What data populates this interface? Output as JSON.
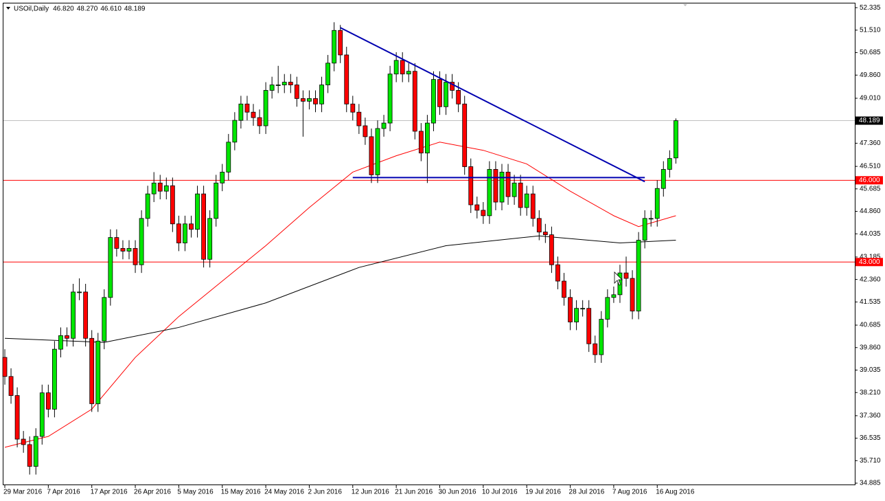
{
  "chart_data": {
    "type": "candlestick",
    "symbol": "USOil,Daily",
    "header_values": [
      "46.820",
      "48.270",
      "46.610",
      "48.189"
    ],
    "categories": [
      "29 Mar 2016",
      null,
      null,
      null,
      null,
      null,
      null,
      "7 Apr 2016",
      null,
      null,
      null,
      null,
      null,
      null,
      "17 Apr 2016",
      null,
      null,
      null,
      null,
      null,
      null,
      "26 Apr 2016",
      null,
      null,
      null,
      null,
      null,
      null,
      "5 May 2016",
      null,
      null,
      null,
      null,
      null,
      null,
      "15 May 2016",
      null,
      null,
      null,
      null,
      null,
      null,
      "24 May 2016",
      null,
      null,
      null,
      null,
      null,
      null,
      "2 Jun 2016",
      null,
      null,
      null,
      null,
      null,
      null,
      "12 Jun 2016",
      null,
      null,
      null,
      null,
      null,
      null,
      "21 Jun 2016",
      null,
      null,
      null,
      null,
      null,
      null,
      "30 Jun 2016",
      null,
      null,
      null,
      null,
      null,
      null,
      "10 Jul 2016",
      null,
      null,
      null,
      null,
      null,
      null,
      "19 Jul 2016",
      null,
      null,
      null,
      null,
      null,
      null,
      "28 Jul 2016",
      null,
      null,
      null,
      null,
      null,
      null,
      "7 Aug 2016",
      null,
      null,
      null,
      null,
      null,
      null,
      "16 Aug 2016",
      null,
      null,
      null
    ],
    "open": [
      39.5,
      38.8,
      38.1,
      36.5,
      36.3,
      35.5,
      36.6,
      38.2,
      37.6,
      39.8,
      40.3,
      40.2,
      41.9,
      41.9,
      40.2,
      37.8,
      40.1,
      41.7,
      43.9,
      43.5,
      43.4,
      43.5,
      42.9,
      44.6,
      45.5,
      45.9,
      45.6,
      45.8,
      44.4,
      43.7,
      44.4,
      44.2,
      45.5,
      43.1,
      44.6,
      45.9,
      46.3,
      47.4,
      48.2,
      48.8,
      48.5,
      48.3,
      48.0,
      49.3,
      49.5,
      49.5,
      49.6,
      49.5,
      49.0,
      48.9,
      49.0,
      48.8,
      49.5,
      50.3,
      51.5,
      50.6,
      48.8,
      48.5,
      48.0,
      47.6,
      46.2,
      47.9,
      48.1,
      49.9,
      50.4,
      49.9,
      50.0,
      47.8,
      47.0,
      48.1,
      49.7,
      48.7,
      49.6,
      49.3,
      48.8,
      46.5,
      45.1,
      44.9,
      44.7,
      46.4,
      45.2,
      46.3,
      45.4,
      45.9,
      45.0,
      45.5,
      44.6,
      44.1,
      44.0,
      42.9,
      42.3,
      41.7,
      40.8,
      41.3,
      41.3,
      40.0,
      39.6,
      40.9,
      41.7,
      41.8,
      42.6,
      42.4,
      41.2,
      43.8,
      44.6,
      44.6,
      45.7,
      46.4,
      46.82
    ],
    "high": [
      39.8,
      39.1,
      38.4,
      36.8,
      36.6,
      36.9,
      38.5,
      38.5,
      40.1,
      40.6,
      40.6,
      42.2,
      42.4,
      42.2,
      40.5,
      40.4,
      42.0,
      44.2,
      44.2,
      43.8,
      43.8,
      43.8,
      44.9,
      45.8,
      46.3,
      46.2,
      46.1,
      46.1,
      44.7,
      44.7,
      44.7,
      45.8,
      45.8,
      44.9,
      46.2,
      46.6,
      47.7,
      48.5,
      49.1,
      49.1,
      48.8,
      48.6,
      49.6,
      49.8,
      50.2,
      49.9,
      49.9,
      49.8,
      49.3,
      49.3,
      49.3,
      49.8,
      50.6,
      51.8,
      51.7,
      50.9,
      49.1,
      48.8,
      48.3,
      47.9,
      48.2,
      48.4,
      50.2,
      50.7,
      50.7,
      50.3,
      50.3,
      48.1,
      48.4,
      50.0,
      50.0,
      49.9,
      49.9,
      49.6,
      49.1,
      46.8,
      45.4,
      45.2,
      46.7,
      46.7,
      46.6,
      46.6,
      46.2,
      46.2,
      45.8,
      45.8,
      44.9,
      44.4,
      44.3,
      43.2,
      42.6,
      42.0,
      41.6,
      41.6,
      41.6,
      40.3,
      41.2,
      42.0,
      42.1,
      42.9,
      43.2,
      42.7,
      44.1,
      44.9,
      44.9,
      46.0,
      46.7,
      47.1,
      48.27
    ],
    "low": [
      38.5,
      37.8,
      36.2,
      36.0,
      35.2,
      35.2,
      36.3,
      37.3,
      37.3,
      39.5,
      39.9,
      39.9,
      41.6,
      39.9,
      37.5,
      37.5,
      39.8,
      41.4,
      43.2,
      43.1,
      43.1,
      42.6,
      42.6,
      44.3,
      45.2,
      45.3,
      45.3,
      44.1,
      43.4,
      43.4,
      43.9,
      43.9,
      42.8,
      42.8,
      44.3,
      45.6,
      46.0,
      47.1,
      47.9,
      48.2,
      48.0,
      47.7,
      47.7,
      49.0,
      49.2,
      49.2,
      49.2,
      48.7,
      47.6,
      48.6,
      48.5,
      48.5,
      49.2,
      50.0,
      50.3,
      48.5,
      48.2,
      47.7,
      47.3,
      45.9,
      45.9,
      47.6,
      47.8,
      49.6,
      49.6,
      49.6,
      47.5,
      46.7,
      45.9,
      47.8,
      48.4,
      48.4,
      49.0,
      48.5,
      46.2,
      44.8,
      44.6,
      44.4,
      44.4,
      44.9,
      44.9,
      45.1,
      45.1,
      44.7,
      44.7,
      44.3,
      43.8,
      43.7,
      42.6,
      42.0,
      41.4,
      40.5,
      40.5,
      41.0,
      39.7,
      39.3,
      39.3,
      40.6,
      41.5,
      41.5,
      42.1,
      40.9,
      40.9,
      43.5,
      44.3,
      44.3,
      45.4,
      46.1,
      46.61
    ],
    "close": [
      38.8,
      38.1,
      36.5,
      36.3,
      35.5,
      36.6,
      38.2,
      37.6,
      39.8,
      40.3,
      40.2,
      41.9,
      41.9,
      40.2,
      37.8,
      40.1,
      41.7,
      43.9,
      43.5,
      43.4,
      43.5,
      42.9,
      44.6,
      45.5,
      45.9,
      45.6,
      45.8,
      44.4,
      43.7,
      44.4,
      44.2,
      45.5,
      43.1,
      44.6,
      45.9,
      46.3,
      47.4,
      48.2,
      48.8,
      48.5,
      48.3,
      48.0,
      49.3,
      49.5,
      49.5,
      49.6,
      49.5,
      49.0,
      48.9,
      49.0,
      48.8,
      49.5,
      50.3,
      51.5,
      50.6,
      48.8,
      48.5,
      48.0,
      47.6,
      46.2,
      47.9,
      48.1,
      49.9,
      50.4,
      49.9,
      50.0,
      47.8,
      47.0,
      48.1,
      49.7,
      48.7,
      49.6,
      49.3,
      48.8,
      46.5,
      45.1,
      44.9,
      44.7,
      46.4,
      45.2,
      46.3,
      45.4,
      45.9,
      45.0,
      45.5,
      44.6,
      44.1,
      44.0,
      42.9,
      42.3,
      41.7,
      40.8,
      41.3,
      41.3,
      40.0,
      39.6,
      40.9,
      41.7,
      41.8,
      42.6,
      42.4,
      41.2,
      43.8,
      44.6,
      44.6,
      45.7,
      46.4,
      46.8,
      48.189
    ],
    "up_color": "#00e600",
    "down_color": "#ff0000",
    "lines": [
      {
        "color": "#ff0000",
        "x": [
          0,
          7,
          14,
          21,
          28,
          35,
          42,
          49,
          56,
          63,
          70,
          77,
          84,
          91,
          98,
          102,
          108
        ],
        "values": [
          36.2,
          36.6,
          37.6,
          39.5,
          41.0,
          42.3,
          43.6,
          45.0,
          46.3,
          46.9,
          47.4,
          47.1,
          46.6,
          45.6,
          44.7,
          44.3,
          44.7
        ]
      },
      {
        "color": "#000000",
        "x": [
          0,
          16,
          28,
          42,
          57,
          71,
          86,
          99,
          108
        ],
        "values": [
          40.2,
          40.05,
          40.6,
          41.5,
          42.8,
          43.6,
          43.96,
          43.7,
          43.8
        ]
      }
    ],
    "trendlines": [
      {
        "color": "#0000b0",
        "x": [
          54,
          103
        ],
        "values": [
          51.6,
          45.95
        ]
      },
      {
        "color": "#0000b0",
        "x": [
          56,
          103
        ],
        "values": [
          46.1,
          46.1
        ]
      }
    ],
    "levels": [
      {
        "value": 46,
        "label": "46.000",
        "color": "#ff0000"
      },
      {
        "value": 43,
        "label": "43.000",
        "color": "#ff0000"
      }
    ],
    "current_price": 48.189,
    "ylim": [
      34.81,
      52.49
    ],
    "yticks": [
      52.335,
      {
        "value": 51.51,
        "label": "51.510"
      },
      50.685,
      {
        "value": 49.86,
        "label": "49.860"
      },
      {
        "value": 49.01,
        "label": "49.010"
      },
      {
        "value": 47.36,
        "label": "47.360"
      },
      {
        "value": 46.51,
        "label": "46.510"
      },
      45.685,
      {
        "value": 44.86,
        "label": "44.860"
      },
      44.035,
      43.185,
      {
        "value": 42.36,
        "label": "42.360"
      },
      41.535,
      40.685,
      {
        "value": 39.86,
        "label": "39.860"
      },
      39.035,
      {
        "value": 38.21,
        "label": "38.210"
      },
      {
        "value": 37.36,
        "label": "37.360"
      },
      36.535,
      {
        "value": 35.71,
        "label": "35.710"
      },
      34.885
    ]
  }
}
